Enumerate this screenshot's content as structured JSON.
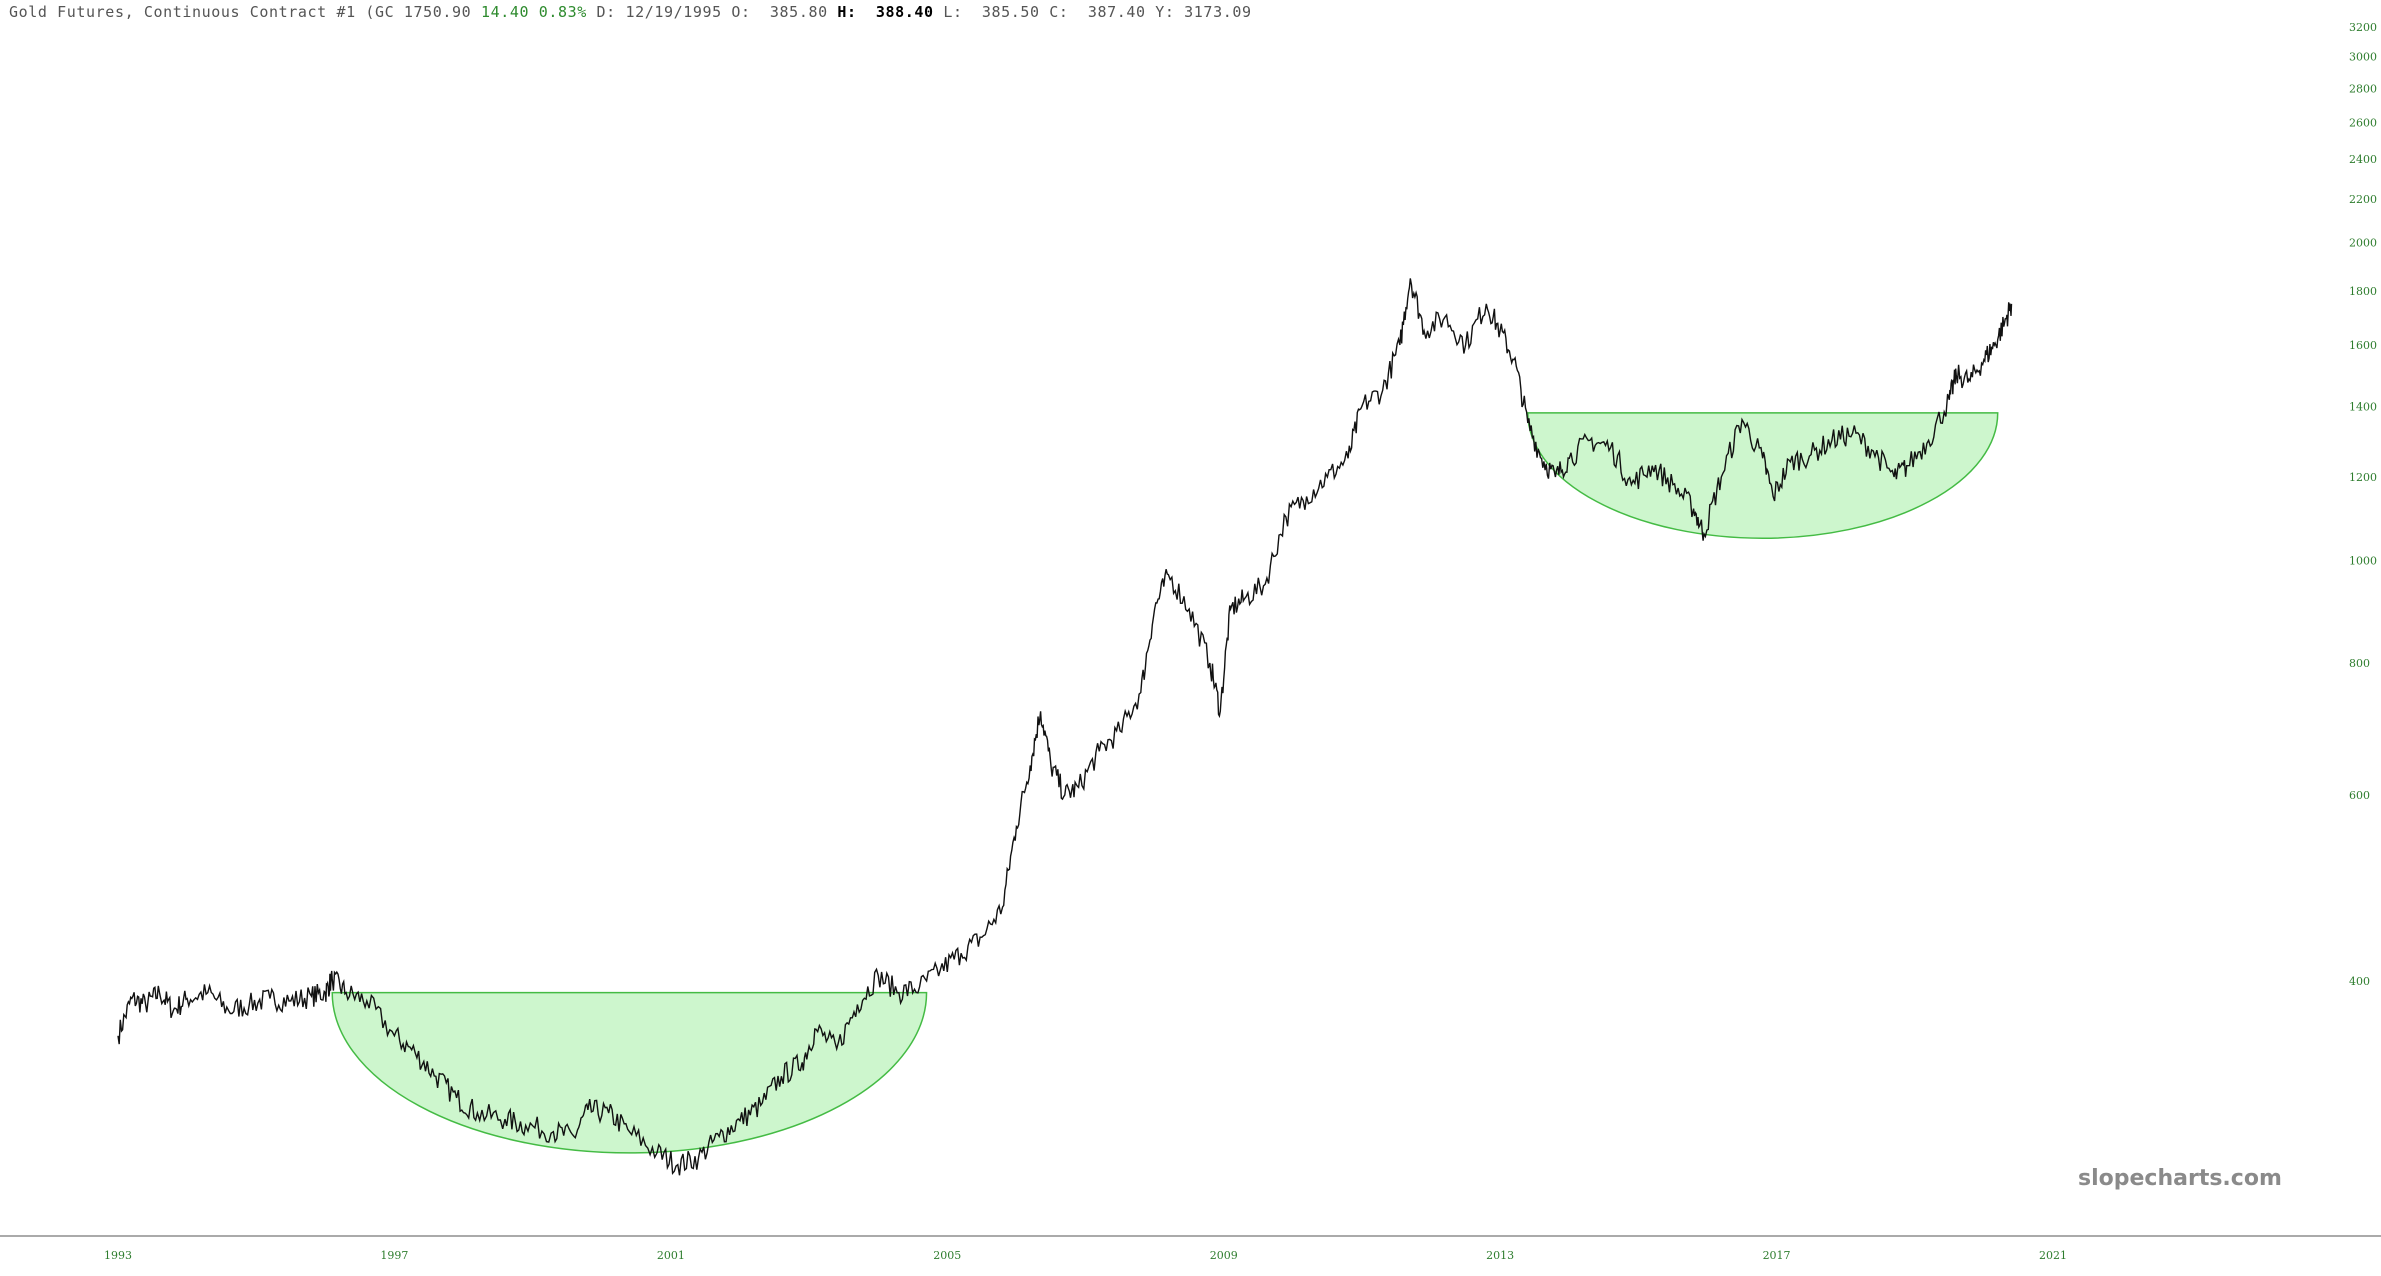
{
  "header": {
    "instrument": "Gold Futures, Continuous Contract #1 (GC",
    "last": "1750.90",
    "change": "14.40",
    "change_pct": "0.83%",
    "d_label": "D:",
    "date": "12/19/1995",
    "o_label": "O:",
    "open": "385.80",
    "h_label": "H:",
    "high": "388.40",
    "l_label": "L:",
    "low": "385.50",
    "c_label": "C:",
    "close": "387.40",
    "y_label": "Y:",
    "y_value": "3173.09"
  },
  "watermark": "slopecharts.com",
  "colors": {
    "price_line": "#111111",
    "positive": "#2e8b2e",
    "bowl_fill": "#c8f5c8",
    "bowl_stroke": "#44bb44",
    "axis_text": "#2e7d2e"
  },
  "chart_data": {
    "type": "line",
    "title": "Gold Futures, Continuous Contract #1",
    "y_scale": "log",
    "grid": false,
    "xlim": [
      1993.0,
      2021.6
    ],
    "ylim": [
      285,
      3300
    ],
    "y_ticks": [
      400,
      600,
      800,
      1000,
      1200,
      1400,
      1600,
      1800,
      2000,
      2200,
      2400,
      2600,
      2800,
      3000,
      3200
    ],
    "x_ticks": [
      {
        "year": 1993,
        "label": "1993"
      },
      {
        "year": 1997,
        "label": "1997"
      },
      {
        "year": 2001,
        "label": "2001"
      },
      {
        "year": 2005,
        "label": "2005"
      },
      {
        "year": 2009,
        "label": "2009"
      },
      {
        "year": 2013,
        "label": "2013"
      },
      {
        "year": 2017,
        "label": "2017"
      },
      {
        "year": 2021,
        "label": "2021"
      }
    ],
    "series": [
      {
        "x": [
          1993.0,
          1993.2,
          1993.4,
          1993.6,
          1993.8,
          1994.0,
          1994.3,
          1994.6,
          1994.9,
          1995.2,
          1995.5,
          1995.8,
          1996.0,
          1996.1,
          1996.3,
          1996.6,
          1997.0,
          1997.3,
          1997.6,
          1997.9,
          1998.2,
          1998.6,
          1998.9,
          1999.3,
          1999.6,
          1999.8,
          2000.1,
          2000.4,
          2000.8,
          2001.1,
          2001.4,
          2001.7,
          2002.0,
          2002.3,
          2002.6,
          2002.9,
          2003.1,
          2003.4,
          2003.7,
          2004.0,
          2004.3,
          2004.6,
          2004.9,
          2005.2,
          2005.5,
          2005.8,
          2006.0,
          2006.2,
          2006.35,
          2006.5,
          2006.7,
          2006.9,
          2007.2,
          2007.5,
          2007.8,
          2008.0,
          2008.2,
          2008.5,
          2008.8,
          2008.95,
          2009.1,
          2009.3,
          2009.6,
          2009.9,
          2010.2,
          2010.5,
          2010.8,
          2011.0,
          2011.3,
          2011.55,
          2011.7,
          2011.9,
          2012.2,
          2012.5,
          2012.8,
          2013.0,
          2013.2,
          2013.4,
          2013.6,
          2013.8,
          2014.0,
          2014.3,
          2014.6,
          2014.9,
          2015.2,
          2015.5,
          2015.8,
          2015.95,
          2016.2,
          2016.5,
          2016.8,
          2016.95,
          2017.2,
          2017.5,
          2017.8,
          2018.1,
          2018.4,
          2018.7,
          2018.9,
          2019.2,
          2019.5,
          2019.6,
          2019.8,
          2020.0,
          2020.15,
          2020.3,
          2020.4
        ],
        "y": [
          355,
          385,
          380,
          390,
          375,
          385,
          390,
          375,
          380,
          385,
          383,
          387,
          390,
          402,
          390,
          383,
          355,
          342,
          325,
          310,
          300,
          296,
          292,
          288,
          285,
          302,
          300,
          288,
          275,
          268,
          272,
          285,
          295,
          305,
          325,
          335,
          360,
          345,
          380,
          405,
          390,
          395,
          410,
          425,
          440,
          470,
          560,
          640,
          720,
          640,
          600,
          610,
          660,
          690,
          750,
          900,
          970,
          900,
          800,
          720,
          900,
          920,
          950,
          1100,
          1150,
          1200,
          1250,
          1400,
          1450,
          1600,
          1850,
          1650,
          1700,
          1600,
          1750,
          1650,
          1550,
          1350,
          1250,
          1200,
          1250,
          1300,
          1280,
          1180,
          1230,
          1180,
          1120,
          1060,
          1200,
          1360,
          1250,
          1150,
          1240,
          1260,
          1300,
          1320,
          1270,
          1200,
          1230,
          1300,
          1420,
          1500,
          1480,
          1550,
          1600,
          1680,
          1750
        ]
      }
    ]
  },
  "annotations": [
    {
      "label": "cup-1",
      "x_start": 1996.1,
      "x_end": 2004.7,
      "rim": 390,
      "bottom": 275
    },
    {
      "label": "cup-2",
      "x_start": 2013.4,
      "x_end": 2020.2,
      "rim": 1380,
      "bottom": 1050
    }
  ]
}
